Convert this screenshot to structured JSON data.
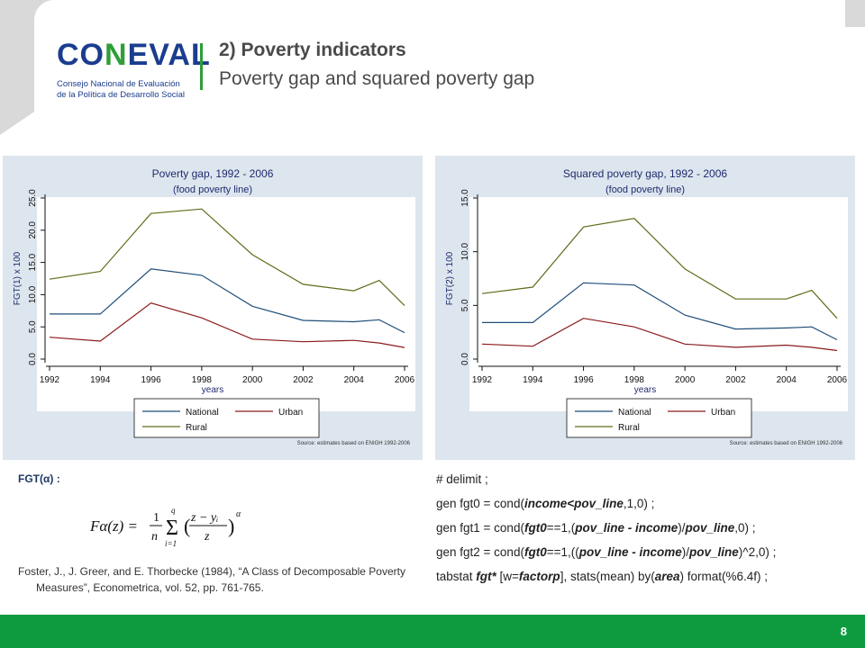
{
  "header": {
    "logo": {
      "name": "CONEVAL logo",
      "word_a": "CO",
      "word_b": "N",
      "word_c": "EVAL",
      "subtitle_line1": "Consejo Nacional de Evaluación",
      "subtitle_line2": "de la Política de Desarrollo Social"
    },
    "title": "2) Poverty indicators",
    "subtitle": "Poverty gap and squared poverty gap"
  },
  "colors": {
    "national": "#1f4e79",
    "urban": "#8b1a1a",
    "rural": "#5b6e1a",
    "footer": "#0e9b40",
    "chart_bg": "#dde6ee"
  },
  "chart_data": [
    {
      "type": "line",
      "title": "Poverty gap, 1992 - 2006",
      "subtitle": "(food poverty line)",
      "xlabel": "years",
      "ylabel": "FGT(1) x 100",
      "x": [
        1992,
        1994,
        1996,
        1998,
        2000,
        2002,
        2004,
        2005,
        2006
      ],
      "xticks": [
        "1992",
        "1994",
        "1996",
        "1998",
        "2000",
        "2002",
        "2004",
        "2006"
      ],
      "yticks": [
        "0.0",
        "5.0",
        "10.0",
        "15.0",
        "20.0",
        "25.0"
      ],
      "ylim": [
        0,
        25
      ],
      "series": [
        {
          "name": "National",
          "values": [
            7.0,
            7.0,
            14.0,
            13.0,
            8.2,
            6.0,
            5.8,
            6.1,
            4.1
          ]
        },
        {
          "name": "Urban",
          "values": [
            3.4,
            2.8,
            8.7,
            6.4,
            3.1,
            2.7,
            2.9,
            2.5,
            1.8
          ]
        },
        {
          "name": "Rural",
          "values": [
            12.4,
            13.6,
            22.6,
            23.3,
            16.2,
            11.6,
            10.6,
            12.2,
            8.3
          ]
        }
      ],
      "legend": "bottom",
      "source": "Source: estimates based on ENIGH 1992-2006"
    },
    {
      "type": "line",
      "title": "Squared poverty gap, 1992 - 2006",
      "subtitle": "(food poverty line)",
      "xlabel": "years",
      "ylabel": "FGT(2) x 100",
      "x": [
        1992,
        1994,
        1996,
        1998,
        2000,
        2002,
        2004,
        2005,
        2006
      ],
      "xticks": [
        "1992",
        "1994",
        "1996",
        "1998",
        "2000",
        "2002",
        "2004",
        "2006"
      ],
      "yticks": [
        "0.0",
        "5.0",
        "10.0",
        "15.0"
      ],
      "ylim": [
        0,
        15
      ],
      "series": [
        {
          "name": "National",
          "values": [
            3.4,
            3.4,
            7.1,
            6.9,
            4.1,
            2.8,
            2.9,
            3.0,
            1.8
          ]
        },
        {
          "name": "Urban",
          "values": [
            1.4,
            1.2,
            3.8,
            3.0,
            1.4,
            1.1,
            1.3,
            1.1,
            0.8
          ]
        },
        {
          "name": "Rural",
          "values": [
            6.1,
            6.7,
            12.3,
            13.1,
            8.4,
            5.6,
            5.6,
            6.4,
            3.8
          ]
        }
      ],
      "legend": "bottom",
      "source": "Source: estimates based on ENIGH 1992-2006"
    }
  ],
  "formula": {
    "label": "FGT(α) :",
    "lhs": "Fα(z) =",
    "frac1_num": "1",
    "frac1_den": "n",
    "sum_top": "q",
    "sum_bottom": "i=1",
    "frac2_num": "z − yᵢ",
    "frac2_den": "z",
    "exponent": "α"
  },
  "reference": "Foster, J., J. Greer, and E. Thorbecke (1984), “A Class of Decomposable Poverty Measures”, Econometrica, vol. 52, pp. 761-765.",
  "code": {
    "line1": "# delimit ;",
    "line2": {
      "a": "gen fgt0 = cond(",
      "b": "income<pov_line",
      "c": ",1,0) ;"
    },
    "line3": {
      "a": "gen fgt1 = cond(",
      "b": "fgt0",
      "c": "==1,(",
      "d": "pov_line - income",
      "e": ")/",
      "f": "pov_line",
      "g": ",0) ;"
    },
    "line4": {
      "a": "gen fgt2 = cond(",
      "b": "fgt0",
      "c": "==1,((",
      "d": "pov_line - income",
      "e": ")/",
      "f": "pov_line",
      "g": ")^2,0) ;"
    },
    "line5": {
      "a": "tabstat ",
      "b": "fgt*",
      "c": " [w=",
      "d": "factorp",
      "e": "], stats(mean) by(",
      "f": "area",
      "g": ") format(%6.4f) ;"
    }
  },
  "footer": {
    "page_number": "8"
  }
}
